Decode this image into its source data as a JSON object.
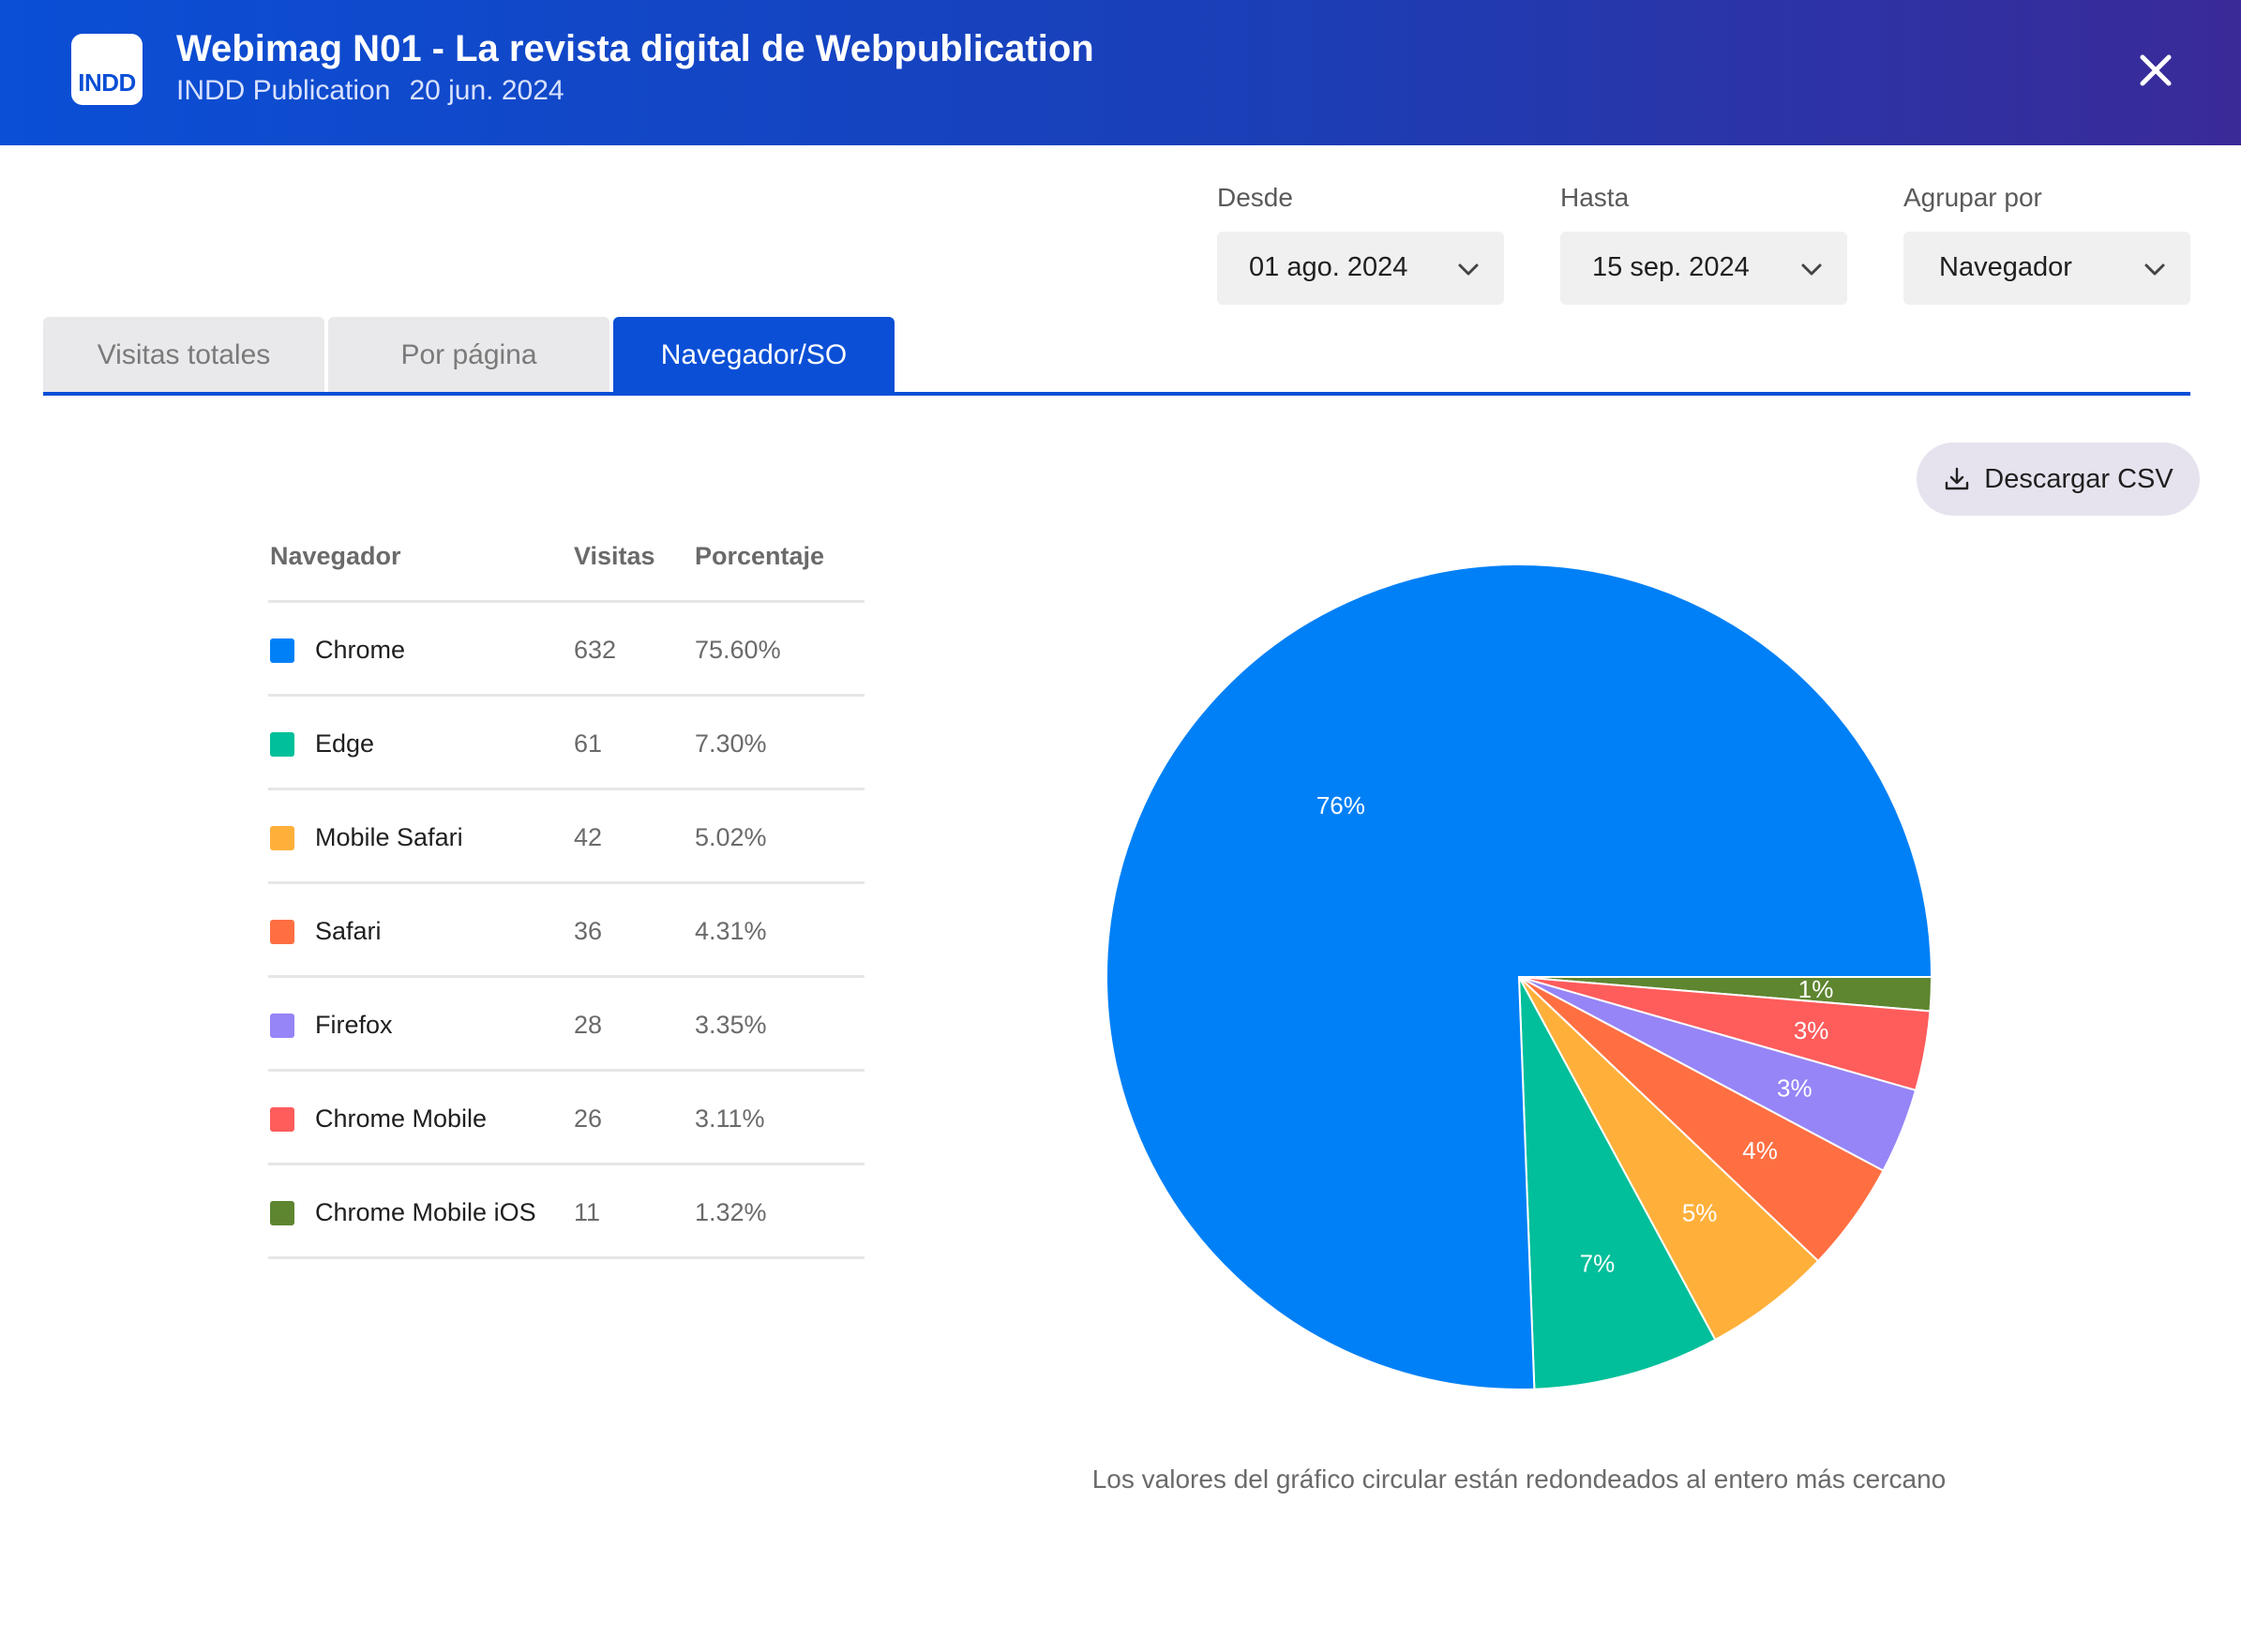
{
  "header": {
    "app_icon_text": "INDD",
    "title": "Webimag N01 - La revista digital de Webpublication",
    "publication_type": "INDD Publication",
    "publication_date": "20 jun. 2024",
    "close_icon": "close-icon"
  },
  "filters": {
    "from": {
      "label": "Desde",
      "value": "01 ago. 2024"
    },
    "to": {
      "label": "Hasta",
      "value": "15 sep. 2024"
    },
    "group_by": {
      "label": "Agrupar por",
      "value": "Navegador"
    }
  },
  "tabs": [
    {
      "label": "Visitas totales",
      "active": false
    },
    {
      "label": "Por página",
      "active": false
    },
    {
      "label": "Navegador/SO",
      "active": true
    }
  ],
  "download": {
    "label": "Descargar CSV",
    "icon": "download-icon"
  },
  "table": {
    "headers": {
      "name": "Navegador",
      "visits": "Visitas",
      "percent": "Porcentaje"
    },
    "rows": [
      {
        "name": "Chrome",
        "visits": "632",
        "percent": "75.60%",
        "color": "#0080f6"
      },
      {
        "name": "Edge",
        "visits": "61",
        "percent": "7.30%",
        "color": "#00bf9a"
      },
      {
        "name": "Mobile Safari",
        "visits": "42",
        "percent": "5.02%",
        "color": "#ffb03b"
      },
      {
        "name": "Safari",
        "visits": "36",
        "percent": "4.31%",
        "color": "#ff6f42"
      },
      {
        "name": "Firefox",
        "visits": "28",
        "percent": "3.35%",
        "color": "#9585f7"
      },
      {
        "name": "Chrome Mobile",
        "visits": "26",
        "percent": "3.11%",
        "color": "#ff5c5c"
      },
      {
        "name": "Chrome Mobile iOS",
        "visits": "11",
        "percent": "1.32%",
        "color": "#5e8530"
      }
    ]
  },
  "chart_data": {
    "type": "pie",
    "categories": [
      "Chrome",
      "Edge",
      "Mobile Safari",
      "Safari",
      "Firefox",
      "Chrome Mobile",
      "Chrome Mobile iOS"
    ],
    "values": [
      75.6,
      7.3,
      5.02,
      4.31,
      3.35,
      3.11,
      1.32
    ],
    "labels": [
      "76%",
      "7%",
      "5%",
      "4%",
      "3%",
      "3%",
      "1%"
    ],
    "colors": [
      "#0080f6",
      "#00bf9a",
      "#ffb03b",
      "#ff6f42",
      "#9585f7",
      "#ff5c5c",
      "#5e8530"
    ]
  },
  "chart_note": "Los valores del gráfico circular están redondeados al entero más cercano"
}
